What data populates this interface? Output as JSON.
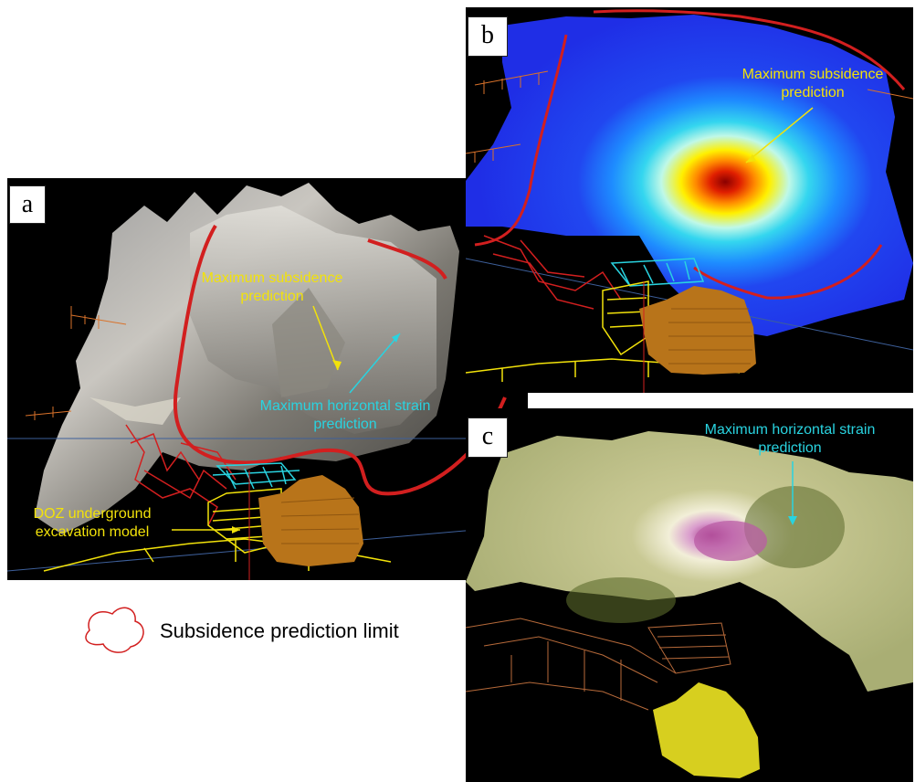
{
  "panels": {
    "a": {
      "label": "a",
      "max_subsidence": [
        "Maximum subsidence",
        "prediction"
      ],
      "max_strain": [
        "Maximum horizontal strain",
        "prediction"
      ],
      "doz_model": [
        "DOZ underground",
        "excavation model"
      ]
    },
    "b": {
      "label": "b",
      "max_subsidence": [
        "Maximum subsidence",
        "prediction"
      ]
    },
    "c": {
      "label": "c",
      "max_strain": [
        "Maximum horizontal strain",
        "prediction"
      ]
    }
  },
  "legend": {
    "label": "Subsidence prediction limit"
  },
  "colors": {
    "subsidence_text": "#f2e20a",
    "strain_text": "#29d3e0",
    "limit_line": "#d21f1f",
    "background": "#000000",
    "excavation_model": "#b8741a"
  }
}
